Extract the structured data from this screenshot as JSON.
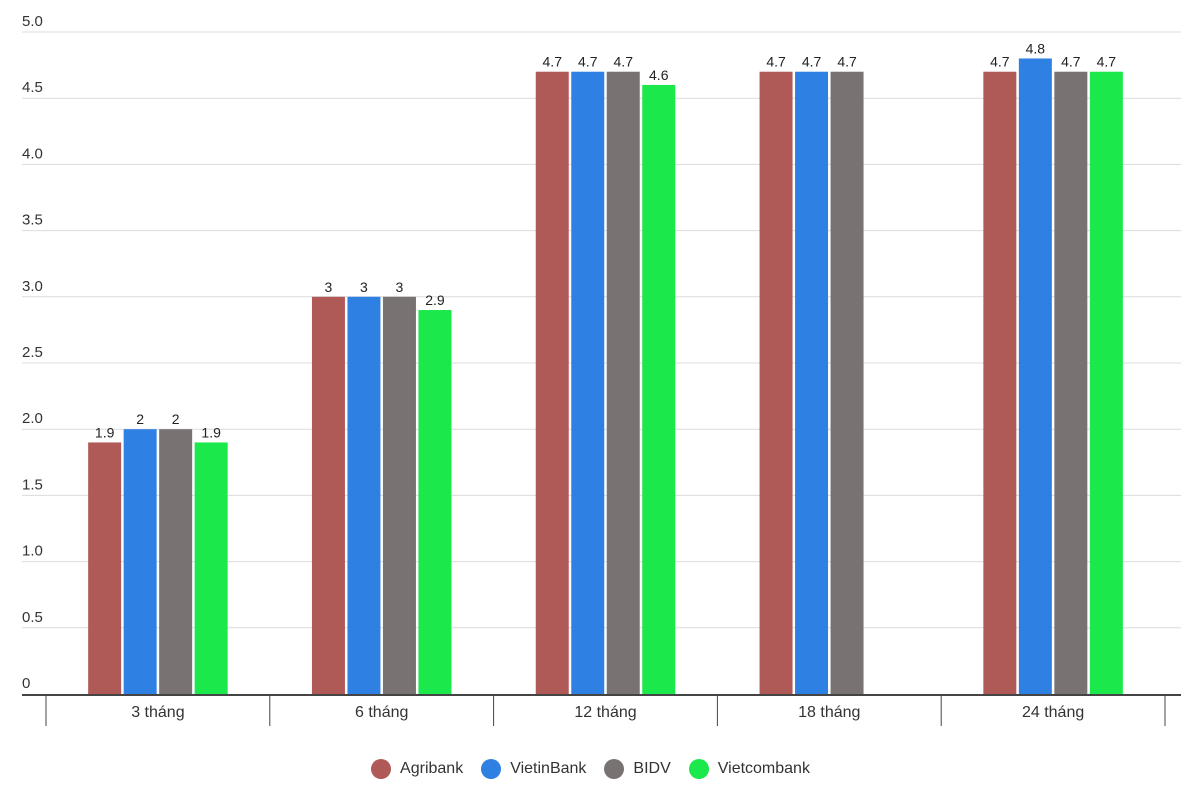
{
  "chart_data": {
    "type": "bar",
    "categories": [
      "3 tháng",
      "6 tháng",
      "12 tháng",
      "18 tháng",
      "24 tháng"
    ],
    "series": [
      {
        "name": "Agribank",
        "color": "#b05a58",
        "values": [
          1.9,
          3,
          4.7,
          4.7,
          4.7
        ]
      },
      {
        "name": "VietinBank",
        "color": "#2f80e3",
        "values": [
          2,
          3,
          4.7,
          4.7,
          4.8
        ]
      },
      {
        "name": "BIDV",
        "color": "#787272",
        "values": [
          2,
          3,
          4.7,
          4.7,
          4.7
        ]
      },
      {
        "name": "Vietcombank",
        "color": "#1be84a",
        "values": [
          1.9,
          2.9,
          4.6,
          null,
          4.7
        ]
      }
    ],
    "yticks": [
      "0",
      "0.5",
      "1.0",
      "1.5",
      "2.0",
      "2.5",
      "3.0",
      "3.5",
      "4.0",
      "4.5",
      "5.0"
    ],
    "ylim": [
      0,
      5
    ],
    "grid": true,
    "legend_position": "bottom"
  }
}
